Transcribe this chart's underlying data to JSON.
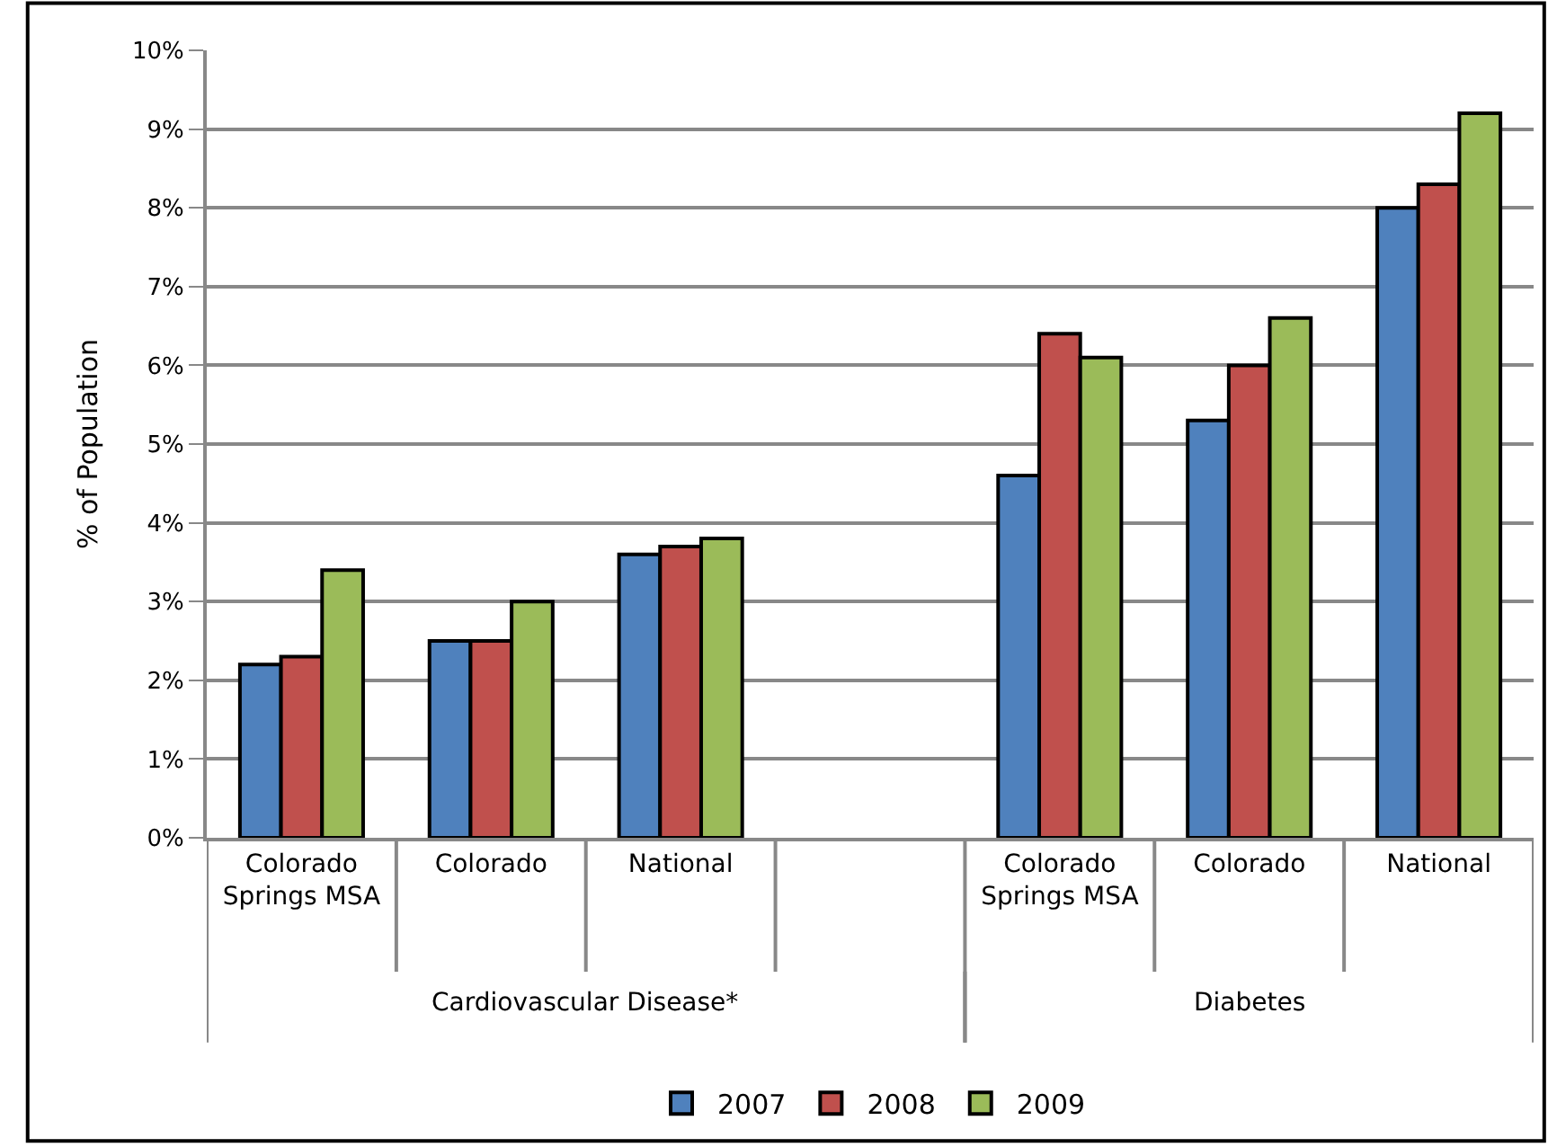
{
  "chart_data": {
    "type": "bar",
    "ylabel": "% of Population",
    "categories": [
      "Colorado Springs MSA",
      "Colorado",
      "National",
      null,
      "Colorado Springs MSA",
      "Colorado",
      "National"
    ],
    "series": [
      {
        "name": "2007",
        "color": "#4f81bd",
        "values": [
          2.2,
          2.5,
          3.6,
          null,
          4.6,
          5.3,
          8.0
        ]
      },
      {
        "name": "2008",
        "color": "#c0504d",
        "values": [
          2.3,
          2.5,
          3.7,
          null,
          6.4,
          6.0,
          8.3
        ]
      },
      {
        "name": "2009",
        "color": "#9bbb59",
        "values": [
          3.4,
          3.0,
          3.8,
          null,
          6.1,
          6.6,
          9.2
        ]
      }
    ],
    "ylim": [
      0,
      10
    ],
    "yticks": [
      {
        "value": 0,
        "label": "0%"
      },
      {
        "value": 1,
        "label": "1%"
      },
      {
        "value": 2,
        "label": "2%"
      },
      {
        "value": 3,
        "label": "3%"
      },
      {
        "value": 4,
        "label": "4%"
      },
      {
        "value": 5,
        "label": "5%"
      },
      {
        "value": 6,
        "label": "6%"
      },
      {
        "value": 7,
        "label": "7%"
      },
      {
        "value": 8,
        "label": "8%"
      },
      {
        "value": 9,
        "label": "9%"
      },
      {
        "value": 10,
        "label": "10%"
      }
    ],
    "annotations": [
      "Cardiovascular Disease*",
      "Diabetes"
    ],
    "grid": "y",
    "legend": "bottom"
  }
}
